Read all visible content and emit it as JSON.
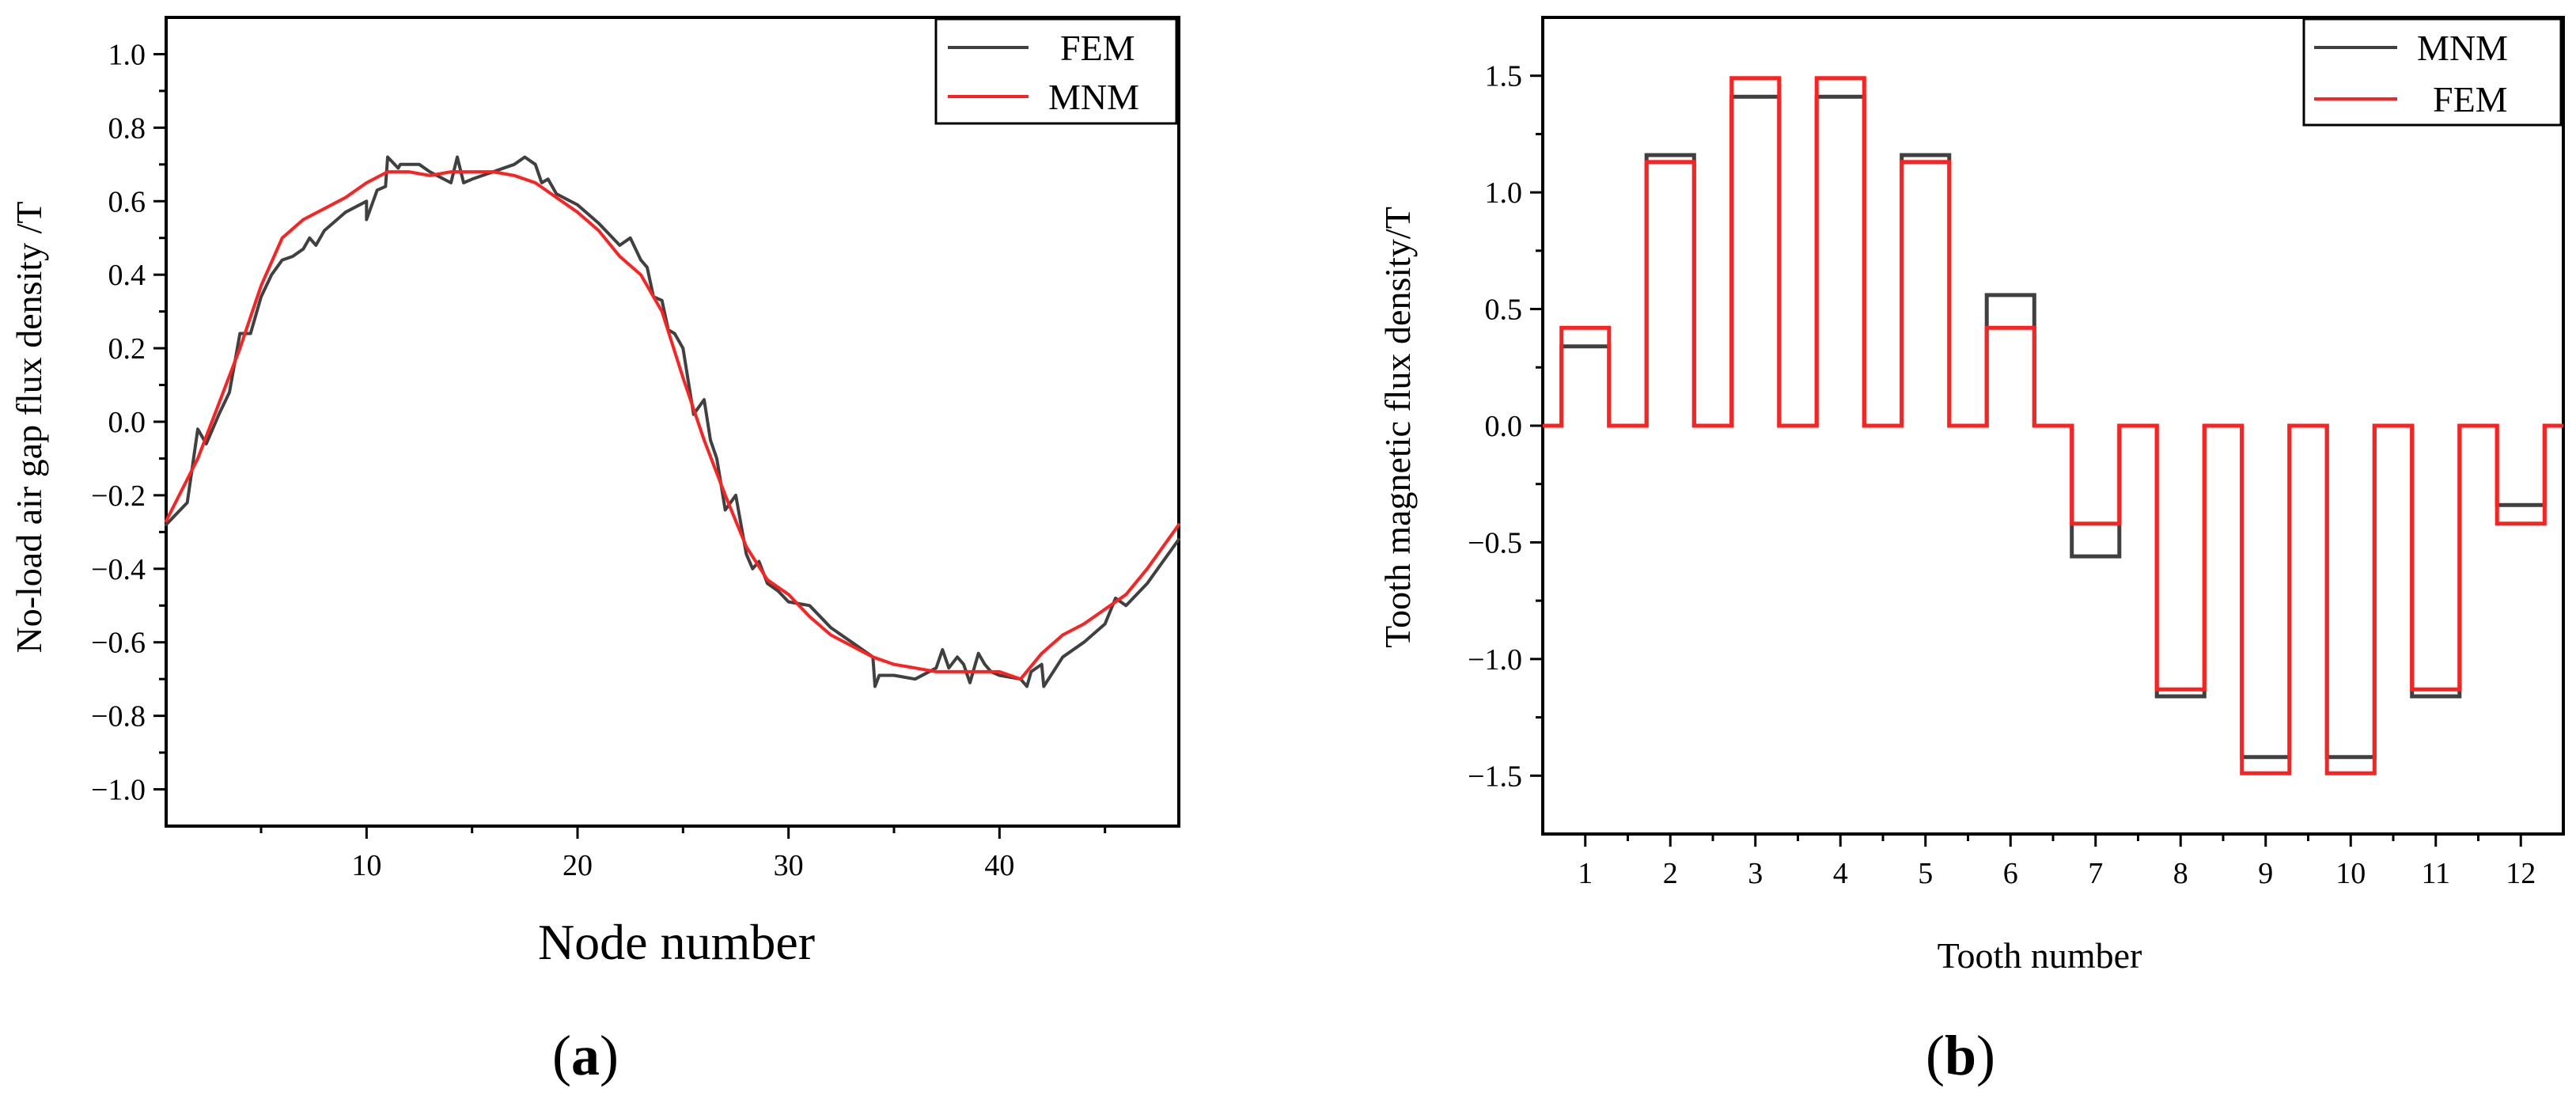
{
  "chart_data": [
    {
      "type": "line",
      "panel": "a",
      "caption": "(a)",
      "caption_prefix": "(",
      "caption_letter": "a",
      "caption_suffix": ")",
      "title": "",
      "xlabel": "Node number",
      "ylabel": "No-load air gap flux density /T",
      "xlim": [
        0.5,
        48.5
      ],
      "ylim": [
        -1.1,
        1.1
      ],
      "xticks": [
        10,
        20,
        30,
        40
      ],
      "yticks": [
        -1.0,
        -0.8,
        -0.6,
        -0.4,
        -0.2,
        0.0,
        0.2,
        0.4,
        0.6,
        0.8,
        1.0
      ],
      "ytick_labels": [
        "−1.0",
        "−0.8",
        "−0.6",
        "−0.4",
        "−0.2",
        "0.0",
        "0.2",
        "0.4",
        "0.6",
        "0.8",
        "1.0"
      ],
      "legend": {
        "position": "top-right",
        "entries": [
          "FEM",
          "MNM"
        ]
      },
      "series": [
        {
          "name": "FEM",
          "color": "#404040",
          "x": [
            0.5,
            1,
            1.5,
            2,
            2.4,
            3,
            3.5,
            4,
            4.5,
            5,
            5.5,
            6,
            6.5,
            7,
            7.3,
            7.6,
            8,
            9,
            10,
            10,
            10.5,
            10.9,
            11,
            11.5,
            11.6,
            12,
            12.5,
            13,
            14,
            14.3,
            14.6,
            15,
            16,
            17,
            17.5,
            18,
            18.3,
            18.6,
            19,
            20,
            21,
            22,
            22.5,
            23,
            23.3,
            23.6,
            24,
            24.3,
            24.6,
            25,
            25.5,
            26,
            26.3,
            26.6,
            27,
            27.5,
            28,
            28.3,
            28.6,
            29,
            29.5,
            30,
            31,
            31.5,
            32,
            33,
            34,
            34.1,
            34.3,
            35,
            36,
            37,
            37.3,
            37.6,
            38,
            38.3,
            38.6,
            39,
            39.3,
            39.6,
            40,
            41,
            41.3,
            41.5,
            42,
            42.1,
            43,
            44,
            45,
            45.5,
            46,
            47,
            47.5,
            48,
            48.5
          ],
          "values": [
            -0.28,
            -0.25,
            -0.22,
            -0.02,
            -0.06,
            0.02,
            0.08,
            0.24,
            0.24,
            0.34,
            0.4,
            0.44,
            0.45,
            0.47,
            0.5,
            0.48,
            0.52,
            0.57,
            0.6,
            0.55,
            0.63,
            0.64,
            0.72,
            0.69,
            0.7,
            0.7,
            0.7,
            0.68,
            0.65,
            0.72,
            0.65,
            0.66,
            0.68,
            0.7,
            0.72,
            0.7,
            0.65,
            0.66,
            0.62,
            0.59,
            0.54,
            0.48,
            0.5,
            0.44,
            0.42,
            0.34,
            0.33,
            0.25,
            0.24,
            0.2,
            0.02,
            0.06,
            -0.05,
            -0.1,
            -0.24,
            -0.2,
            -0.36,
            -0.4,
            -0.38,
            -0.44,
            -0.46,
            -0.49,
            -0.5,
            -0.53,
            -0.56,
            -0.6,
            -0.64,
            -0.72,
            -0.69,
            -0.69,
            -0.7,
            -0.67,
            -0.62,
            -0.67,
            -0.64,
            -0.66,
            -0.71,
            -0.63,
            -0.66,
            -0.68,
            -0.69,
            -0.7,
            -0.72,
            -0.68,
            -0.66,
            -0.72,
            -0.64,
            -0.6,
            -0.55,
            -0.48,
            -0.5,
            -0.44,
            -0.4,
            -0.36,
            -0.32
          ],
          "width": 4
        },
        {
          "name": "MNM",
          "color": "#ff2020",
          "x": [
            0.5,
            2,
            3,
            4,
            5,
            6,
            7,
            8,
            9,
            10,
            11,
            12,
            13,
            14,
            15,
            16,
            17,
            18,
            19,
            20,
            21,
            22,
            23,
            24,
            25,
            26,
            27,
            28,
            29,
            30,
            31,
            32,
            33,
            34,
            35,
            36,
            37,
            38,
            39,
            40,
            41,
            42,
            43,
            44,
            45,
            46,
            47,
            48.5
          ],
          "values": [
            -0.27,
            -0.1,
            0.05,
            0.2,
            0.37,
            0.5,
            0.55,
            0.58,
            0.61,
            0.65,
            0.68,
            0.68,
            0.67,
            0.68,
            0.68,
            0.68,
            0.67,
            0.65,
            0.61,
            0.57,
            0.52,
            0.45,
            0.4,
            0.3,
            0.12,
            -0.05,
            -0.2,
            -0.34,
            -0.43,
            -0.47,
            -0.53,
            -0.58,
            -0.61,
            -0.64,
            -0.66,
            -0.67,
            -0.68,
            -0.68,
            -0.68,
            -0.68,
            -0.7,
            -0.63,
            -0.58,
            -0.55,
            -0.51,
            -0.47,
            -0.4,
            -0.28
          ],
          "width": 4
        }
      ]
    },
    {
      "type": "line",
      "subtype": "step",
      "panel": "b",
      "caption": "(b)",
      "caption_prefix": "(",
      "caption_letter": "b",
      "caption_suffix": ")",
      "title": "",
      "xlabel": "Tooth number",
      "ylabel": "Tooth magnetic flux density/T",
      "xlim": [
        0.5,
        12.5
      ],
      "ylim": [
        -1.75,
        1.75
      ],
      "xticks": [
        1,
        2,
        3,
        4,
        5,
        6,
        7,
        8,
        9,
        10,
        11,
        12
      ],
      "xtick_labels": [
        "1",
        "2",
        "3",
        "4",
        "5",
        "6",
        "7",
        "8",
        "9",
        "10",
        "11",
        "12"
      ],
      "yticks": [
        -1.5,
        -1.0,
        -0.5,
        0.0,
        0.5,
        1.0,
        1.5
      ],
      "ytick_labels": [
        "−1.5",
        "−1.0",
        "−0.5",
        "0.0",
        "0.5",
        "1.0",
        "1.5"
      ],
      "tooth_half_width": 0.28,
      "legend": {
        "position": "top-right",
        "entries": [
          "MNM",
          "FEM"
        ]
      },
      "series": [
        {
          "name": "MNM",
          "color": "#404040",
          "categories": [
            1,
            2,
            3,
            4,
            5,
            6,
            7,
            8,
            9,
            10,
            11,
            12
          ],
          "values": [
            0.34,
            1.16,
            1.41,
            1.41,
            1.16,
            0.56,
            -0.56,
            -1.16,
            -1.42,
            -1.42,
            -1.16,
            -0.34
          ],
          "width": 5
        },
        {
          "name": "FEM",
          "color": "#ff2020",
          "categories": [
            1,
            2,
            3,
            4,
            5,
            6,
            7,
            8,
            9,
            10,
            11,
            12
          ],
          "values": [
            0.42,
            1.13,
            1.49,
            1.49,
            1.13,
            0.42,
            -0.42,
            -1.13,
            -1.49,
            -1.49,
            -1.13,
            -0.42
          ],
          "width": 5
        }
      ]
    }
  ]
}
